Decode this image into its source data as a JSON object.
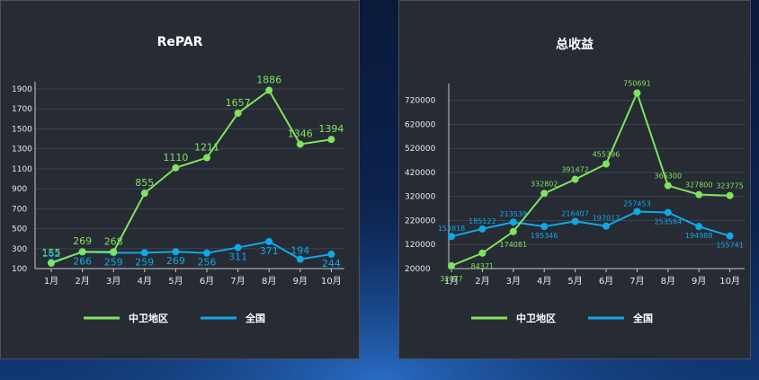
{
  "colors": {
    "green": "#7fe35f",
    "blue": "#12a8e6",
    "panel_bg": "#272b34",
    "grid": "#3d4350",
    "axis_text": "#e8e8e8"
  },
  "legend": {
    "series_a": "中卫地区",
    "series_b": "全国"
  },
  "chart_data": [
    {
      "type": "line",
      "title": "RePAR",
      "categories": [
        "1月",
        "2月",
        "3月",
        "4月",
        "5月",
        "6月",
        "7月",
        "8月",
        "9月",
        "10月"
      ],
      "ylim": [
        100,
        1900
      ],
      "yticks": [
        "100",
        "300",
        "500",
        "700",
        "900",
        "1100",
        "1300",
        "1500",
        "1700",
        "1900"
      ],
      "series": [
        {
          "name": "中卫地区",
          "values": [
            155,
            269,
            268,
            855,
            1110,
            1211,
            1657,
            1886,
            1346,
            1394
          ],
          "labels": [
            "155",
            "269",
            "268",
            "855",
            "1110",
            "1211",
            "1657",
            "1886",
            "1346",
            "1394"
          ]
        },
        {
          "name": "全国",
          "values": [
            162,
            266,
            259,
            259,
            269,
            256,
            311,
            371,
            194,
            244
          ],
          "labels": [
            "162",
            "266",
            "259",
            "259",
            "269",
            "256",
            "311",
            "371",
            "194",
            "244"
          ]
        }
      ]
    },
    {
      "type": "line",
      "title": "总收益",
      "categories": [
        "1月",
        "2月",
        "3月",
        "4月",
        "5月",
        "6月",
        "7月",
        "8月",
        "9月",
        "10月"
      ],
      "ylim": [
        20000,
        760000
      ],
      "yticks": [
        "20000",
        "120000",
        "220000",
        "320000",
        "420000",
        "520000",
        "620000",
        "720000"
      ],
      "series": [
        {
          "name": "中卫地区",
          "values": [
            32077,
            84371,
            174081,
            332802,
            391472,
            455396,
            750691,
            365300,
            327800,
            323775
          ],
          "labels": [
            "32077",
            "84371",
            "174081",
            "332802",
            "391472",
            "455396",
            "750691",
            "365300",
            "327800",
            "323775"
          ]
        },
        {
          "name": "全国",
          "values": [
            153818,
            185122,
            213539,
            195346,
            216407,
            197017,
            257453,
            253584,
            194988,
            155741
          ],
          "labels": [
            "153818",
            "185122",
            "213539",
            "195346",
            "216407",
            "197017",
            "257453",
            "253584",
            "194988",
            "155741"
          ]
        }
      ]
    }
  ]
}
